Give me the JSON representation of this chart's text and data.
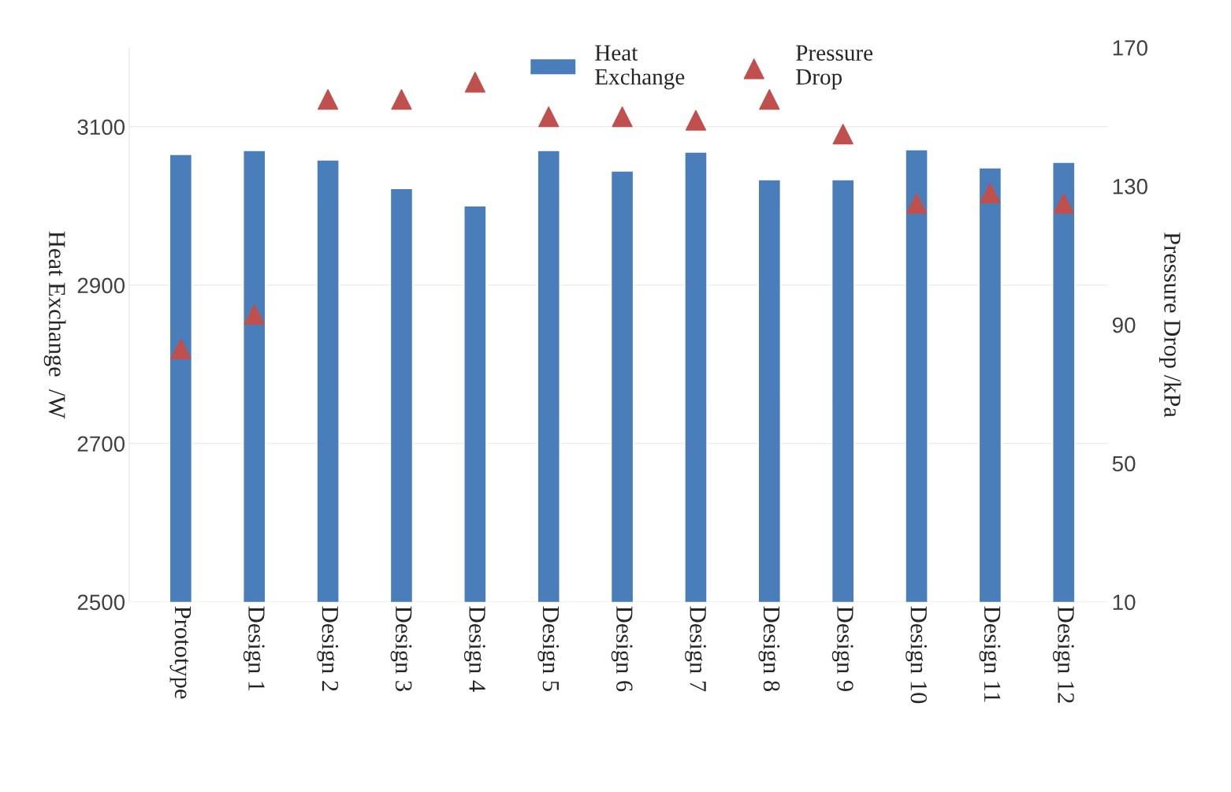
{
  "chart_data": {
    "type": "bar",
    "categories": [
      "Prototype",
      "Design 1",
      "Design 2",
      "Design 3",
      "Design 4",
      "Design 5",
      "Design 6",
      "Design 7",
      "Design 8",
      "Design 9",
      "Design 10",
      "Design 11",
      "Design 12"
    ],
    "series": [
      {
        "name": "Heat\nExchange",
        "color": "#4a7ebb",
        "values": [
          3065,
          3070,
          3058,
          3022,
          3000,
          3070,
          3044,
          3068,
          3033,
          3033,
          3071,
          3048,
          3055
        ]
      },
      {
        "name": "Pressure\nDrop",
        "type": "scatter",
        "axis": "y2",
        "marker": "triangle",
        "color": "#c0504d",
        "values": [
          83,
          93,
          155,
          155,
          160,
          150,
          150,
          149,
          155,
          145,
          125,
          128,
          125
        ]
      }
    ],
    "ylabel": "Heat Exchange  /W",
    "y2label": "Pressure Drop /kPa",
    "ylim": [
      2500,
      3200
    ],
    "yticks": [
      2500,
      2700,
      2900,
      3100
    ],
    "y2lim": [
      10,
      170
    ],
    "y2ticks": [
      10,
      50,
      90,
      130,
      170
    ],
    "grid": "y",
    "legend": "top"
  }
}
